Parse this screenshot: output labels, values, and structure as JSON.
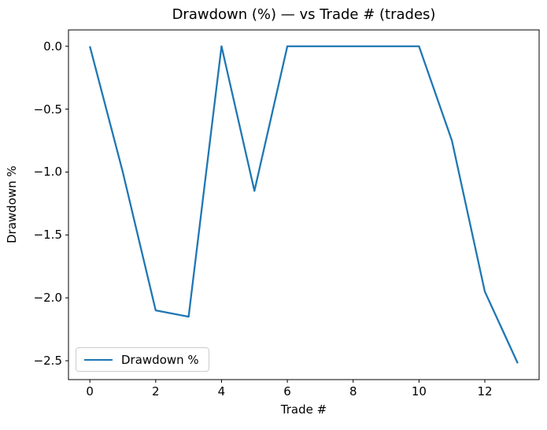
{
  "chart_data": {
    "type": "line",
    "title": "Drawdown (%) — vs Trade # (trades)",
    "xlabel": "Trade #",
    "ylabel": "Drawdown %",
    "legend": {
      "position": "lower left",
      "entries": [
        "Drawdown %"
      ]
    },
    "x": [
      0,
      1,
      2,
      3,
      4,
      5,
      6,
      7,
      8,
      9,
      10,
      11,
      12,
      13
    ],
    "series": [
      {
        "name": "Drawdown %",
        "color": "#1f77b4",
        "values": [
          0.0,
          -1.0,
          -2.1,
          -2.15,
          0.0,
          -1.15,
          0.0,
          0.0,
          0.0,
          0.0,
          0.0,
          -0.75,
          -1.95,
          -2.52
        ]
      }
    ],
    "xlim": [
      -0.65,
      13.65
    ],
    "ylim": [
      -2.65,
      0.13
    ],
    "xticks": {
      "values": [
        0,
        2,
        4,
        6,
        8,
        10,
        12
      ],
      "labels": [
        "0",
        "2",
        "4",
        "6",
        "8",
        "10",
        "12"
      ]
    },
    "yticks": {
      "values": [
        0.0,
        -0.5,
        -1.0,
        -1.5,
        -2.0,
        -2.5
      ],
      "labels": [
        "0.0",
        "−0.5",
        "−1.0",
        "−1.5",
        "−2.0",
        "−2.5"
      ]
    },
    "grid": false,
    "axes_color": "#000000",
    "background": "#ffffff"
  }
}
